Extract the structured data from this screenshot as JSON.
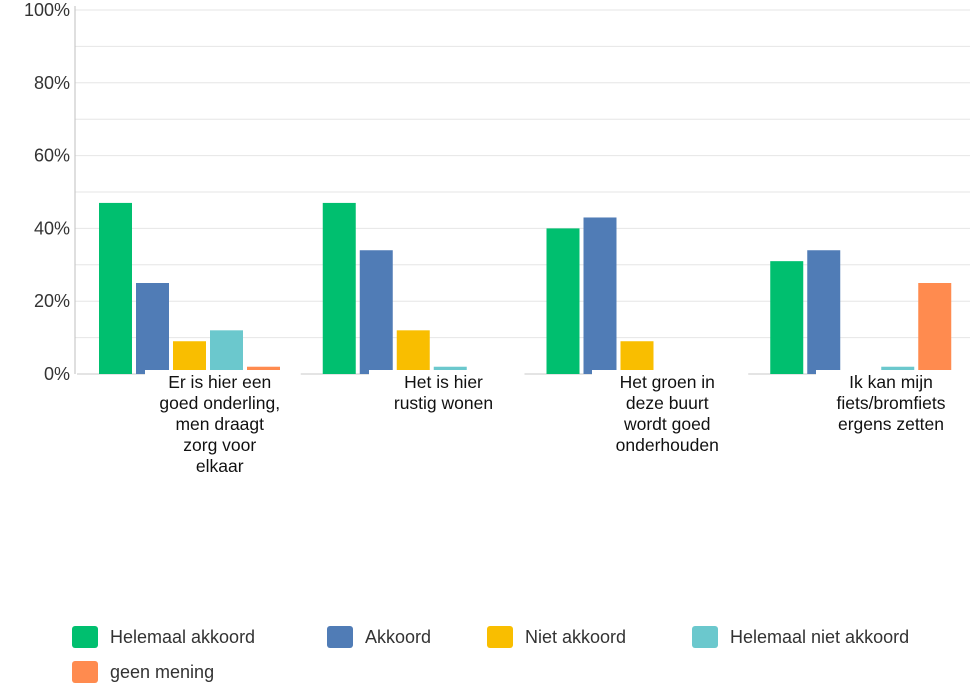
{
  "chart_data": {
    "type": "bar",
    "categories": [
      "Er is hier een goed onderling, men draagt zorg voor elkaar",
      "Het is hier rustig wonen",
      "Het groen in deze buurt wordt goed onderhouden",
      "Ik kan mijn fiets/bromfiets ergens zetten"
    ],
    "category_lines": [
      [
        "Er is hier een",
        "goed onderling,",
        "men draagt",
        "zorg voor",
        "elkaar"
      ],
      [
        "Het is hier",
        "rustig wonen"
      ],
      [
        "Het groen in",
        "deze buurt",
        "wordt goed",
        "onderhouden"
      ],
      [
        "Ik kan mijn",
        "fiets/bromfiets",
        "ergens zetten"
      ]
    ],
    "series": [
      {
        "name": "Helemaal akkoord",
        "color": "#00bf6f",
        "values": [
          47,
          47,
          40,
          31
        ]
      },
      {
        "name": "Akkoord",
        "color": "#507cb6",
        "values": [
          25,
          34,
          43,
          34
        ]
      },
      {
        "name": "Niet akkoord",
        "color": "#f9be00",
        "values": [
          9,
          12,
          9,
          0
        ]
      },
      {
        "name": "Helemaal niet akkoord",
        "color": "#6bc8cd",
        "values": [
          12,
          2,
          0,
          2
        ]
      },
      {
        "name": "geen mening",
        "color": "#ff8b4f",
        "values": [
          2,
          0,
          1,
          25
        ]
      }
    ],
    "y_ticks": [
      "0%",
      "20%",
      "40%",
      "60%",
      "80%",
      "100%"
    ],
    "ylim": [
      0,
      100
    ],
    "grid": true,
    "legend_position": "bottom",
    "title": "",
    "xlabel": "",
    "ylabel": ""
  }
}
